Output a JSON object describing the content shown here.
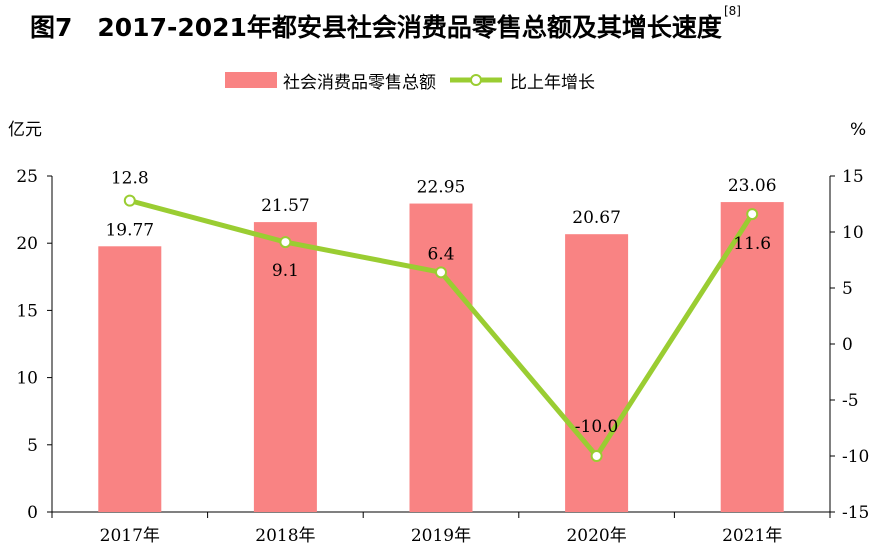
{
  "title": "图7　2017-2021年都安县社会消费品零售总额及其增长速度",
  "title_ref": "[8]",
  "chart_data": {
    "type": "bar+line",
    "categories": [
      "2017年",
      "2018年",
      "2019年",
      "2020年",
      "2021年"
    ],
    "series": [
      {
        "name": "社会消费品零售总额",
        "type": "bar",
        "axis": "left",
        "values": [
          19.77,
          21.57,
          22.95,
          20.67,
          23.06
        ],
        "labels": [
          "19.77",
          "21.57",
          "22.95",
          "20.67",
          "23.06"
        ],
        "color": "#f98383"
      },
      {
        "name": "比上年增长",
        "type": "line",
        "axis": "right",
        "values": [
          12.8,
          9.1,
          6.4,
          -10.0,
          11.6
        ],
        "labels": [
          "12.8",
          "9.1",
          "6.4",
          "-10.0",
          "11.6"
        ],
        "color": "#9acd32"
      }
    ],
    "y_left": {
      "label": "亿元",
      "min": 0,
      "max": 25,
      "ticks": [
        0,
        5,
        10,
        15,
        20,
        25
      ]
    },
    "y_right": {
      "label": "%",
      "min": -15,
      "max": 15,
      "ticks": [
        -15,
        -10,
        -5,
        0,
        5,
        10,
        15
      ]
    },
    "legend_position": "top-center",
    "grid": false
  }
}
